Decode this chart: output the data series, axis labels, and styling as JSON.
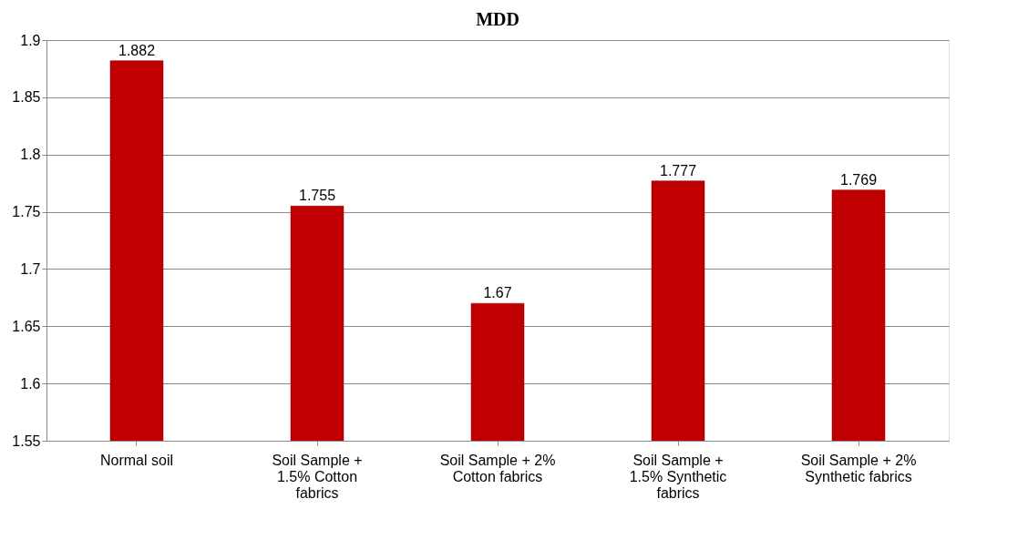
{
  "chart_data": {
    "type": "bar",
    "title": "MDD",
    "categories": [
      "Normal soil",
      "Soil Sample + 1.5% Cotton fabrics",
      "Soil Sample + 2% Cotton fabrics",
      "Soil Sample + 1.5% Synthetic fabrics",
      "Soil Sample + 2% Synthetic fabrics"
    ],
    "values": [
      1.882,
      1.755,
      1.67,
      1.777,
      1.769
    ],
    "color": "#c00000",
    "ylim": [
      1.55,
      1.9
    ],
    "yticks": [
      1.55,
      1.6,
      1.65,
      1.7,
      1.75,
      1.8,
      1.85,
      1.9
    ],
    "grid": "y",
    "data_labels": true
  }
}
